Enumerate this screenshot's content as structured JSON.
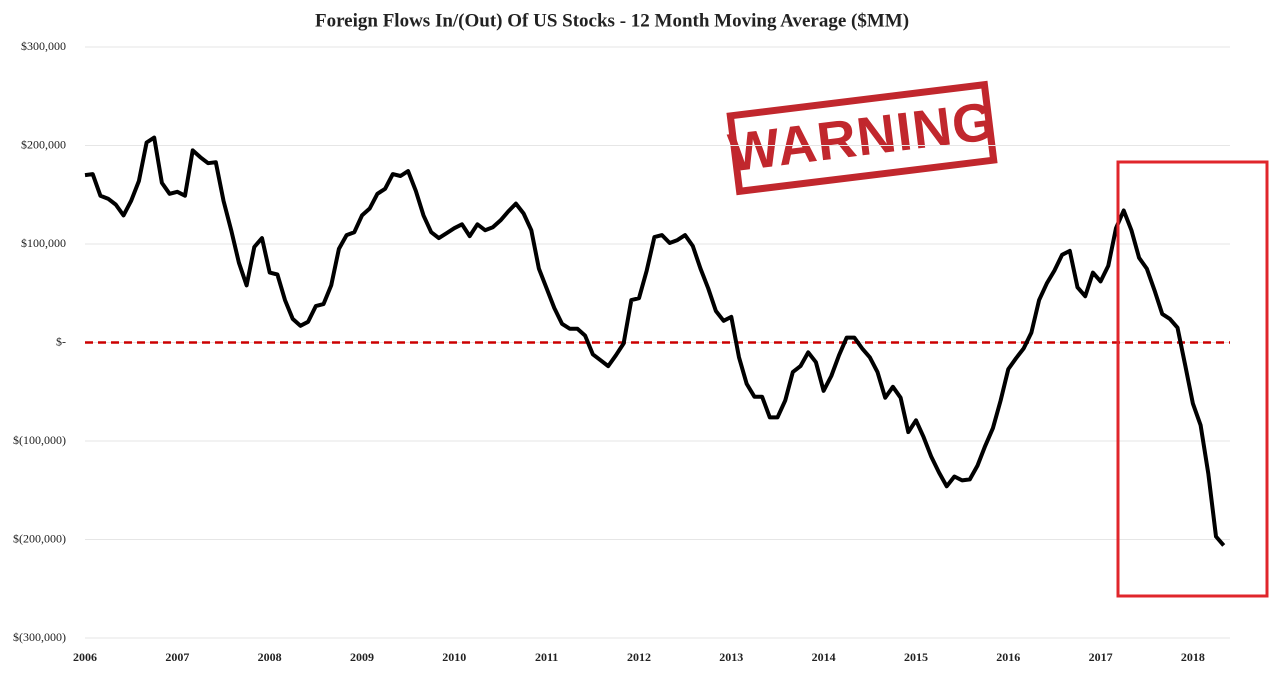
{
  "chart_data": {
    "type": "line",
    "title": "Foreign Flows In/(Out) Of US Stocks  - 12 Month Moving Average ($MM)",
    "annotation": "WARNING",
    "categories": [
      "2006",
      null,
      null,
      null,
      null,
      null,
      null,
      null,
      null,
      null,
      null,
      null,
      "2007",
      null,
      null,
      null,
      null,
      null,
      null,
      null,
      null,
      null,
      null,
      null,
      "2008",
      null,
      null,
      null,
      null,
      null,
      null,
      null,
      null,
      null,
      null,
      null,
      "2009",
      null,
      null,
      null,
      null,
      null,
      null,
      null,
      null,
      null,
      null,
      null,
      "2010",
      null,
      null,
      null,
      null,
      null,
      null,
      null,
      null,
      null,
      null,
      null,
      "2011",
      null,
      null,
      null,
      null,
      null,
      null,
      null,
      null,
      null,
      null,
      null,
      "2012",
      null,
      null,
      null,
      null,
      null,
      null,
      null,
      null,
      null,
      null,
      null,
      "2013",
      null,
      null,
      null,
      null,
      null,
      null,
      null,
      null,
      null,
      null,
      null,
      "2014",
      null,
      null,
      null,
      null,
      null,
      null,
      null,
      null,
      null,
      null,
      null,
      "2015",
      null,
      null,
      null,
      null,
      null,
      null,
      null,
      null,
      null,
      null,
      null,
      "2016",
      null,
      null,
      null,
      null,
      null,
      null,
      null,
      null,
      null,
      null,
      null,
      "2017",
      null,
      null,
      null,
      null,
      null,
      null,
      null,
      null,
      null,
      null,
      null,
      "2018",
      null,
      null,
      null,
      null
    ],
    "series": [
      {
        "name": "Foreign Flows",
        "color": "#000000",
        "values": [
          170000,
          171000,
          149000,
          146000,
          140000,
          129000,
          144000,
          164000,
          203000,
          208000,
          162000,
          151000,
          153000,
          149000,
          195000,
          188000,
          182000,
          183000,
          144000,
          114000,
          81000,
          58000,
          97000,
          106000,
          71000,
          69000,
          43000,
          24000,
          17000,
          21000,
          37000,
          39000,
          58000,
          95000,
          109000,
          112000,
          129000,
          136000,
          151000,
          156000,
          171000,
          169000,
          174000,
          154000,
          129000,
          112000,
          106000,
          111000,
          116000,
          120000,
          108000,
          120000,
          114000,
          117000,
          124000,
          133000,
          141000,
          131000,
          114000,
          75000,
          55000,
          35000,
          19000,
          14000,
          14000,
          7000,
          -12000,
          -18000,
          -24000,
          -13000,
          -1000,
          43000,
          45000,
          73000,
          107000,
          109000,
          101000,
          104000,
          109000,
          98000,
          75000,
          55000,
          32000,
          22000,
          26000,
          -15000,
          -42000,
          -55000,
          -55000,
          -76000,
          -76000,
          -59000,
          -30000,
          -24000,
          -10000,
          -20000,
          -49000,
          -34000,
          -13000,
          5000,
          5000,
          -6000,
          -15000,
          -30000,
          -56000,
          -45000,
          -56000,
          -91000,
          -79000,
          -96000,
          -116000,
          -132000,
          -146000,
          -136000,
          -140000,
          -139000,
          -125000,
          -105000,
          -87000,
          -59000,
          -27000,
          -16000,
          -6000,
          10000,
          43000,
          60000,
          73000,
          89000,
          93000,
          56000,
          47000,
          71000,
          62000,
          78000,
          116000,
          134000,
          114000,
          86000,
          75000,
          53000,
          29000,
          24000,
          15000,
          -23000,
          -62000,
          -84000,
          -133000,
          -197000,
          -206000
        ]
      }
    ],
    "reference_line": {
      "value": 0,
      "color": "#cc0000"
    },
    "ylim": [
      -300000,
      300000
    ],
    "yticks": [
      {
        "value": -300000,
        "label": "$(300,000)"
      },
      {
        "value": -200000,
        "label": "$(200,000)"
      },
      {
        "value": -100000,
        "label": "$(100,000)"
      },
      {
        "value": 0,
        "label": "$-"
      },
      {
        "value": 100000,
        "label": "$100,000"
      },
      {
        "value": 200000,
        "label": "$200,000"
      },
      {
        "value": 300000,
        "label": "$300,000"
      }
    ],
    "grid": true
  }
}
